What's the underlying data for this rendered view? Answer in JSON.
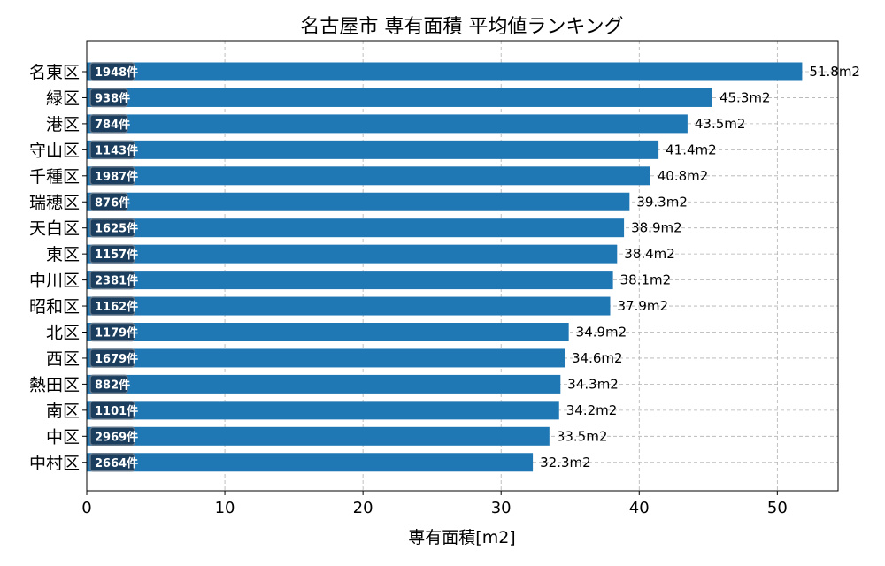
{
  "chart_data": {
    "type": "bar",
    "orientation": "horizontal",
    "title": "名古屋市 専有面積 平均値ランキング",
    "xlabel": "専有面積[m2]",
    "ylabel": "",
    "xlim": [
      0,
      54.4
    ],
    "xticks": [
      "0",
      "10",
      "20",
      "30",
      "40",
      "50"
    ],
    "grid": true,
    "bar_color": "#1f77b4",
    "count_badge_color": "#1b3a57",
    "value_unit": "m2",
    "count_unit": "件",
    "categories": [
      "名東区",
      "緑区",
      "港区",
      "守山区",
      "千種区",
      "瑞穂区",
      "天白区",
      "東区",
      "中川区",
      "昭和区",
      "北区",
      "西区",
      "熱田区",
      "南区",
      "中区",
      "中村区"
    ],
    "values": [
      51.8,
      45.3,
      43.5,
      41.4,
      40.8,
      39.3,
      38.9,
      38.4,
      38.1,
      37.9,
      34.9,
      34.6,
      34.3,
      34.2,
      33.5,
      32.3
    ],
    "value_labels": [
      "51.8m2",
      "45.3m2",
      "43.5m2",
      "41.4m2",
      "40.8m2",
      "39.3m2",
      "38.9m2",
      "38.4m2",
      "38.1m2",
      "37.9m2",
      "34.9m2",
      "34.6m2",
      "34.3m2",
      "34.2m2",
      "33.5m2",
      "32.3m2"
    ],
    "counts": [
      "1948件",
      "938件",
      "784件",
      "1143件",
      "1987件",
      "876件",
      "1625件",
      "1157件",
      "2381件",
      "1162件",
      "1179件",
      "1679件",
      "882件",
      "1101件",
      "2969件",
      "2664件"
    ]
  }
}
